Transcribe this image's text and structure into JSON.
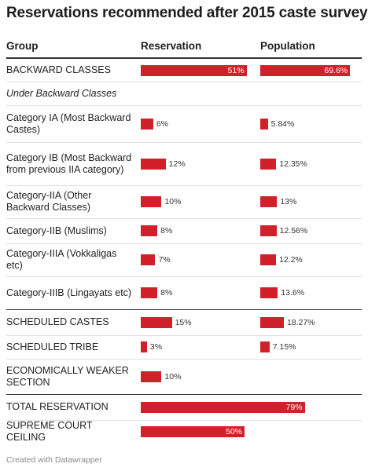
{
  "title": "Reservations recommended after 2015 caste survey",
  "footer": "Created with Datawrapper",
  "colors": {
    "bar": "#d0212a",
    "text": "#1d1d1d",
    "rule": "#333333",
    "divider": "#e0e0e0",
    "footer": "#8a8a8a"
  },
  "chart_data": {
    "type": "table",
    "columns": [
      "Group",
      "Reservation",
      "Population"
    ],
    "rows": [
      {
        "group": "BACKWARD CLASSES",
        "reservation": "51%",
        "population": "69.6%",
        "reservation_value": 51,
        "population_value": 69.6
      },
      {
        "group": "Under Backward Classes",
        "reservation": null,
        "population": null,
        "reservation_value": null,
        "population_value": null,
        "italic": true
      },
      {
        "group": "Category IA (Most Backward Castes)",
        "reservation": "6%",
        "population": "5.84%",
        "reservation_value": 6,
        "population_value": 5.84
      },
      {
        "group": "Category IB (Most Backward from previous IIA category)",
        "reservation": "12%",
        "population": "12.35%",
        "reservation_value": 12,
        "population_value": 12.35
      },
      {
        "group": "Category-IIA (Other Backward Classes)",
        "reservation": "10%",
        "population": "13%",
        "reservation_value": 10,
        "population_value": 13
      },
      {
        "group": "Category-IIB (Muslims)",
        "reservation": "8%",
        "population": "12.56%",
        "reservation_value": 8,
        "population_value": 12.56
      },
      {
        "group": "Category-IIIA (Vokkaligas etc)",
        "reservation": "7%",
        "population": "12.2%",
        "reservation_value": 7,
        "population_value": 12.2
      },
      {
        "group": "Category-IIIB (Lingayats etc)",
        "reservation": "8%",
        "population": "13.6%",
        "reservation_value": 8,
        "population_value": 13.6
      },
      {
        "group": "SCHEDULED CASTES",
        "reservation": "15%",
        "population": "18.27%",
        "reservation_value": 15,
        "population_value": 18.27
      },
      {
        "group": "SCHEDULED TRIBE",
        "reservation": "3%",
        "population": "7.15%",
        "reservation_value": 3,
        "population_value": 7.15
      },
      {
        "group": "ECONOMICALLY WEAKER SECTION",
        "reservation": "10%",
        "population": null,
        "reservation_value": 10,
        "population_value": null
      },
      {
        "group": "TOTAL RESERVATION",
        "reservation": "79%",
        "population": null,
        "reservation_value": 79,
        "population_value": null
      },
      {
        "group": "SUPREME COURT CEILING",
        "reservation": "50%",
        "population": null,
        "reservation_value": 50,
        "population_value": null
      }
    ]
  }
}
